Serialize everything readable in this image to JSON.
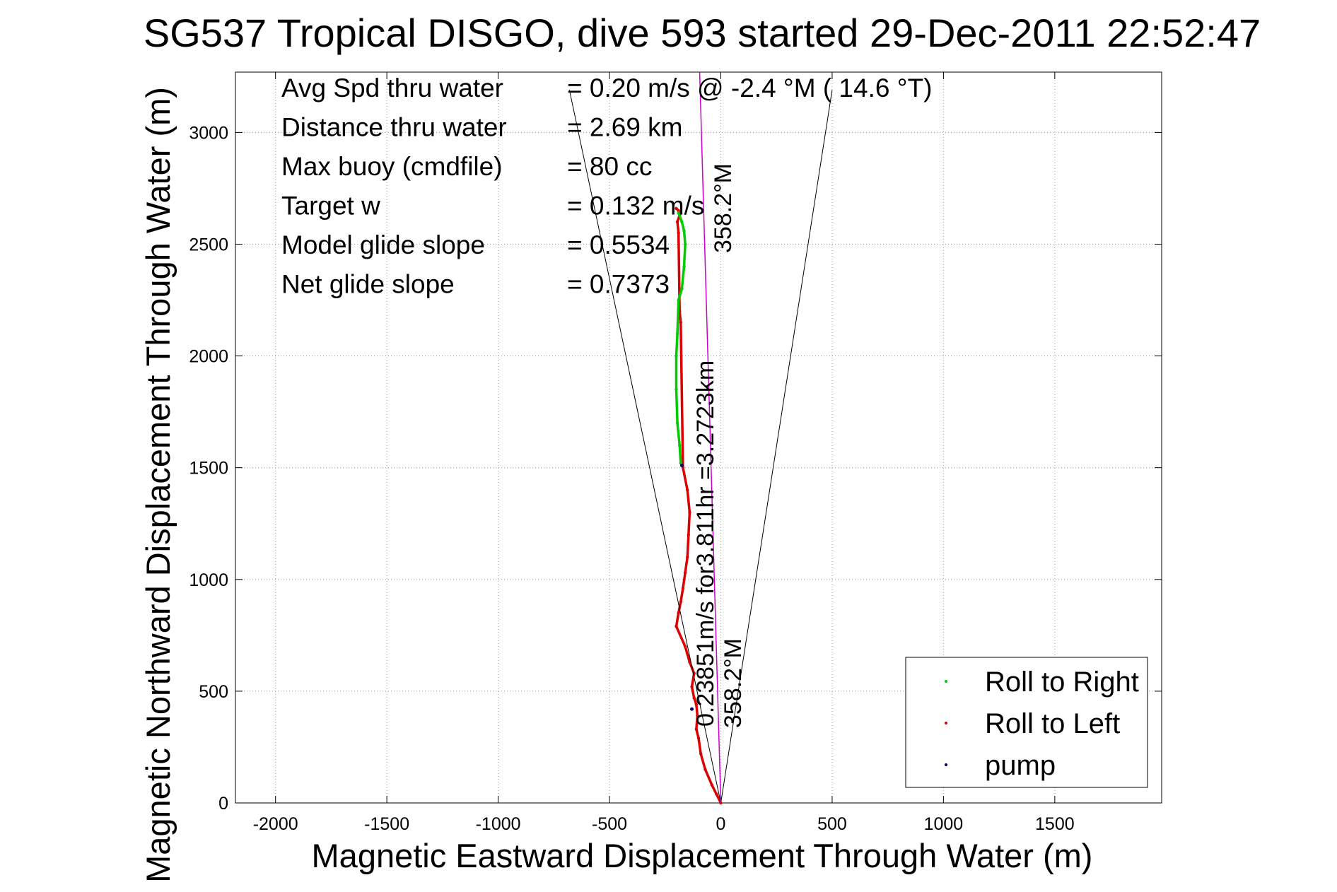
{
  "chart_data": {
    "type": "scatter",
    "title": "SG537 Tropical DISGO, dive 593 started 29-Dec-2011 22:52:47",
    "xlabel": "Magnetic Eastward Displacement Through Water (m)",
    "ylabel": "Magnetic Northward Displacement Through Water (m)",
    "xlim": [
      -2180,
      1980
    ],
    "ylim": [
      0,
      3270
    ],
    "xticks": [
      -2000,
      -1500,
      -1000,
      -500,
      0,
      500,
      1000,
      1500
    ],
    "yticks": [
      0,
      500,
      1000,
      1500,
      2000,
      2500,
      3000
    ],
    "grid": true,
    "legend": {
      "position": "bottom-right",
      "entries": [
        {
          "label": "Roll to Right",
          "color": "#00cc00"
        },
        {
          "label": "Roll to Left",
          "color": "#dd0000"
        },
        {
          "label": "pump",
          "color": "#000066"
        }
      ]
    },
    "stats": [
      {
        "label": "Avg Spd thru water",
        "value": "=  0.20 m/s @  -2.4 °M ( 14.6 °T)"
      },
      {
        "label": "Distance thru water",
        "value": "=  2.69 km"
      },
      {
        "label": "Max buoy (cmdfile)",
        "value": "= 80 cc"
      },
      {
        "label": "Target w",
        "value": "= 0.132 m/s"
      },
      {
        "label": "Model glide slope",
        "value": "= 0.5534"
      },
      {
        "label": "Net glide slope",
        "value": "= 0.7373"
      }
    ],
    "heading_label_top": "358.2°M",
    "heading_label_bottom": "358.2°M",
    "current_label": "0.23851m/s for3.811hr =3.2723km",
    "cone_lines": [
      {
        "x": [
          0,
          -680
        ],
        "y": [
          0,
          3190
        ]
      },
      {
        "x": [
          0,
          500
        ],
        "y": [
          0,
          3190
        ]
      }
    ],
    "heading_line": {
      "x": [
        0,
        -95
      ],
      "y": [
        0,
        3270
      ],
      "color": "#cc00cc"
    },
    "series": [
      {
        "name": "Roll to Left",
        "color": "#dd0000",
        "x": [
          0,
          -20,
          -40,
          -70,
          -90,
          -100,
          -110,
          -105,
          -110,
          -120,
          -130,
          -120,
          -140,
          -160,
          -200,
          -190,
          -180,
          -170,
          -160,
          -150,
          -145,
          -140,
          -150,
          -170,
          -180,
          -185,
          -190,
          -195,
          -185,
          -190,
          -200
        ],
        "y": [
          0,
          40,
          80,
          150,
          220,
          290,
          330,
          390,
          440,
          470,
          520,
          580,
          630,
          700,
          790,
          850,
          900,
          960,
          1030,
          1100,
          1200,
          1300,
          1400,
          1500,
          2150,
          2200,
          2550,
          2600,
          2630,
          2650,
          2660
        ]
      },
      {
        "name": "Roll to Right",
        "color": "#00cc00",
        "x": [
          -180,
          -185,
          -195,
          -200,
          -200,
          -195,
          -190,
          -175,
          -165,
          -160,
          -165,
          -175,
          -190
        ],
        "y": [
          1520,
          1600,
          1700,
          1850,
          2000,
          2100,
          2250,
          2300,
          2400,
          2500,
          2560,
          2600,
          2640
        ]
      },
      {
        "name": "pump",
        "color": "#000066",
        "x": [
          -130,
          -175
        ],
        "y": [
          420,
          1510
        ]
      }
    ]
  }
}
